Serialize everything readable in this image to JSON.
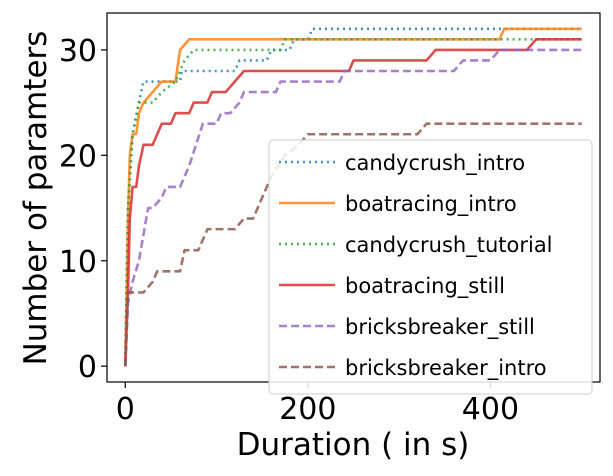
{
  "chart_data": {
    "type": "line",
    "title": "",
    "xlabel": "Duration ( in s)",
    "ylabel": "Number of paramters",
    "xlim": [
      -20,
      520
    ],
    "ylim": [
      -1.5,
      33.5
    ],
    "xticks": [
      0,
      200,
      400
    ],
    "yticks": [
      0,
      10,
      20,
      30
    ],
    "grid": false,
    "legend_position": "lower-right",
    "series": [
      {
        "name": "candycrush_intro",
        "color": "#1f77b4",
        "dash": "dotted",
        "points": [
          [
            0,
            0
          ],
          [
            3,
            15
          ],
          [
            8,
            22
          ],
          [
            15,
            25
          ],
          [
            20,
            27
          ],
          [
            60,
            27
          ],
          [
            62,
            28
          ],
          [
            120,
            28
          ],
          [
            125,
            29
          ],
          [
            155,
            29
          ],
          [
            160,
            30
          ],
          [
            180,
            30
          ],
          [
            185,
            31
          ],
          [
            200,
            31
          ],
          [
            205,
            32
          ],
          [
            500,
            32
          ]
        ]
      },
      {
        "name": "boatracing_intro",
        "color": "#ff7f0e",
        "dash": "solid",
        "points": [
          [
            0,
            0
          ],
          [
            3,
            14
          ],
          [
            5,
            20
          ],
          [
            8,
            22
          ],
          [
            12,
            22
          ],
          [
            15,
            24
          ],
          [
            20,
            25
          ],
          [
            40,
            27
          ],
          [
            55,
            27
          ],
          [
            60,
            30
          ],
          [
            70,
            31
          ],
          [
            410,
            31
          ],
          [
            415,
            32
          ],
          [
            500,
            32
          ]
        ]
      },
      {
        "name": "candycrush_tutorial",
        "color": "#2ca02c",
        "dash": "dotted",
        "points": [
          [
            0,
            0
          ],
          [
            3,
            15
          ],
          [
            8,
            22
          ],
          [
            15,
            25
          ],
          [
            30,
            25
          ],
          [
            40,
            26
          ],
          [
            55,
            27
          ],
          [
            65,
            29
          ],
          [
            75,
            30
          ],
          [
            80,
            30
          ],
          [
            170,
            30
          ],
          [
            175,
            31
          ],
          [
            250,
            31
          ],
          [
            255,
            31
          ],
          [
            260,
            31
          ],
          [
            500,
            31
          ]
        ]
      },
      {
        "name": "boatracing_still",
        "color": "#d62728",
        "dash": "solid",
        "points": [
          [
            0,
            0
          ],
          [
            3,
            7
          ],
          [
            5,
            14
          ],
          [
            8,
            17
          ],
          [
            12,
            17
          ],
          [
            15,
            19
          ],
          [
            20,
            21
          ],
          [
            30,
            21
          ],
          [
            35,
            22
          ],
          [
            40,
            23
          ],
          [
            50,
            23
          ],
          [
            55,
            24
          ],
          [
            70,
            24
          ],
          [
            75,
            25
          ],
          [
            90,
            25
          ],
          [
            95,
            26
          ],
          [
            110,
            26
          ],
          [
            120,
            27
          ],
          [
            130,
            28
          ],
          [
            180,
            28
          ],
          [
            185,
            28
          ],
          [
            245,
            28
          ],
          [
            250,
            29
          ],
          [
            330,
            29
          ],
          [
            340,
            30
          ],
          [
            440,
            30
          ],
          [
            450,
            31
          ],
          [
            500,
            31
          ]
        ]
      },
      {
        "name": "bricksbreaker_still",
        "color": "#9467bd",
        "dash": "dashed",
        "points": [
          [
            0,
            0
          ],
          [
            3,
            6
          ],
          [
            8,
            8
          ],
          [
            15,
            10
          ],
          [
            25,
            15
          ],
          [
            30,
            15
          ],
          [
            40,
            16
          ],
          [
            45,
            17
          ],
          [
            60,
            17
          ],
          [
            70,
            19
          ],
          [
            85,
            23
          ],
          [
            100,
            23
          ],
          [
            105,
            24
          ],
          [
            115,
            24
          ],
          [
            125,
            25
          ],
          [
            130,
            26
          ],
          [
            165,
            26
          ],
          [
            170,
            27
          ],
          [
            205,
            27
          ],
          [
            210,
            27
          ],
          [
            235,
            27
          ],
          [
            240,
            28
          ],
          [
            360,
            28
          ],
          [
            370,
            29
          ],
          [
            400,
            29
          ],
          [
            410,
            30
          ],
          [
            500,
            30
          ]
        ]
      },
      {
        "name": "bricksbreaker_intro",
        "color": "#8c564b",
        "dash": "dashed",
        "points": [
          [
            0,
            0
          ],
          [
            3,
            7
          ],
          [
            10,
            7
          ],
          [
            20,
            7
          ],
          [
            30,
            8
          ],
          [
            35,
            9
          ],
          [
            60,
            9
          ],
          [
            65,
            11
          ],
          [
            80,
            11
          ],
          [
            90,
            13
          ],
          [
            110,
            13
          ],
          [
            120,
            13
          ],
          [
            130,
            14
          ],
          [
            140,
            14
          ],
          [
            150,
            16
          ],
          [
            160,
            18
          ],
          [
            175,
            20
          ],
          [
            190,
            21
          ],
          [
            200,
            22
          ],
          [
            320,
            22
          ],
          [
            330,
            23
          ],
          [
            500,
            23
          ]
        ]
      }
    ]
  }
}
